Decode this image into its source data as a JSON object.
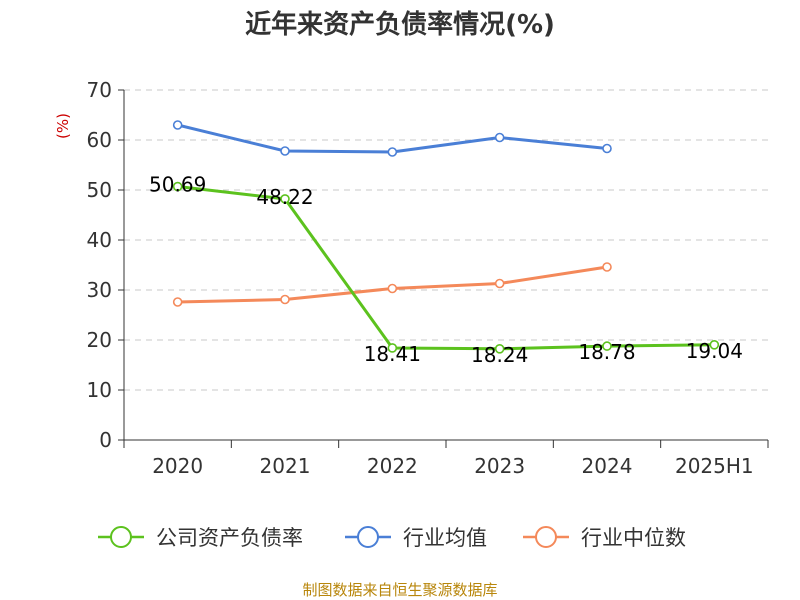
{
  "chart_data": {
    "type": "line",
    "title": "近年来资产负债率情况(%)",
    "xlabel": "",
    "ylabel": "(%)",
    "ylim": [
      0,
      70
    ],
    "yticks": [
      "0",
      "10",
      "20",
      "30",
      "40",
      "50",
      "60",
      "70"
    ],
    "categories": [
      "2020",
      "2021",
      "2022",
      "2023",
      "2024",
      "2025H1"
    ],
    "grid": true,
    "legend_position": "bottom",
    "series": [
      {
        "name": "公司资产负债率",
        "color": "#5cc21e",
        "values": [
          50.69,
          48.22,
          18.41,
          18.24,
          18.78,
          19.04
        ],
        "labels": [
          "50.69",
          "48.22",
          "18.41",
          "18.24",
          "18.78",
          "19.04"
        ]
      },
      {
        "name": "行业均值",
        "color": "#4a7fd6",
        "values": [
          63.0,
          57.8,
          57.6,
          60.5,
          58.3,
          null
        ]
      },
      {
        "name": "行业中位数",
        "color": "#f4895a",
        "values": [
          27.6,
          28.1,
          30.3,
          31.3,
          34.6,
          null
        ]
      }
    ],
    "source": "制图数据来自恒生聚源数据库"
  }
}
